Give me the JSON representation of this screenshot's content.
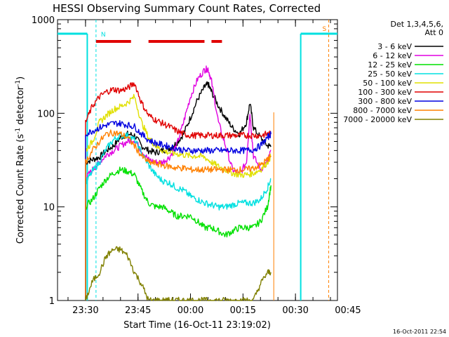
{
  "chart_data": {
    "type": "line",
    "title": "HESSI Observing Summary Count Rates, Corrected",
    "xlabel": "Start Time (16-Oct-11 23:19:02)",
    "ylabel": "Corrected Count Rate (s⁻¹ detector⁻¹)",
    "ylabel_main": "Corrected Count Rate (s",
    "ylabel_sup1": "-1",
    "ylabel_mid": " detector",
    "ylabel_sup2": "-1",
    "ylabel_end": ")",
    "y_scale": "log",
    "ylim": [
      1,
      1000
    ],
    "xlim_minutes": [
      -38,
      42
    ],
    "x_ticks": [
      {
        "m": -30,
        "label": "23:30"
      },
      {
        "m": -15,
        "label": "23:45"
      },
      {
        "m": 0,
        "label": "00:00"
      },
      {
        "m": 15,
        "label": "00:15"
      },
      {
        "m": 30,
        "label": "00:30"
      },
      {
        "m": 45,
        "label": "00:45"
      }
    ],
    "y_ticks": [
      {
        "v": 1,
        "label": "1"
      },
      {
        "v": 10,
        "label": "10"
      },
      {
        "v": 100,
        "label": "100"
      },
      {
        "v": 1000,
        "label": "1000"
      }
    ],
    "legend": {
      "placement": "right",
      "header_line1": "Det 1,3,4,5,6,",
      "header_line2": "Att 0",
      "entries": [
        {
          "label": "3 - 6 keV",
          "color": "#000000"
        },
        {
          "label": "6 - 12 keV",
          "color": "#e000e0"
        },
        {
          "label": "12 - 25 keV",
          "color": "#00e000"
        },
        {
          "label": "25 - 50 keV",
          "color": "#00e0e0"
        },
        {
          "label": "50 - 100 keV",
          "color": "#e0e000"
        },
        {
          "label": "100 - 300 keV",
          "color": "#e00000"
        },
        {
          "label": "300 - 800 keV",
          "color": "#0000e0"
        },
        {
          "label": "800 - 7000 keV",
          "color": "#ff8000"
        },
        {
          "label": "7000 - 20000 keV",
          "color": "#808000"
        }
      ]
    },
    "markers": {
      "night_label": "N",
      "saa_label": "S",
      "night_color": "#00e0e0",
      "saa_color": "#ff8000",
      "flare_color": "#e00000"
    },
    "flare_bars": [
      [
        -27,
        -17
      ],
      [
        -12,
        4
      ],
      [
        6,
        9
      ]
    ],
    "series": [
      {
        "name": "3 - 6 keV",
        "color": "#000000",
        "points": [
          [
            -30,
            30
          ],
          [
            -28,
            32
          ],
          [
            -26,
            34
          ],
          [
            -24,
            40
          ],
          [
            -22,
            45
          ],
          [
            -20,
            55
          ],
          [
            -18,
            60
          ],
          [
            -16,
            58
          ],
          [
            -14,
            45
          ],
          [
            -12,
            40
          ],
          [
            -10,
            38
          ],
          [
            -8,
            40
          ],
          [
            -6,
            42
          ],
          [
            -4,
            48
          ],
          [
            -2,
            60
          ],
          [
            0,
            90
          ],
          [
            2,
            140
          ],
          [
            4,
            190
          ],
          [
            5,
            205
          ],
          [
            6,
            170
          ],
          [
            8,
            120
          ],
          [
            10,
            90
          ],
          [
            12,
            70
          ],
          [
            14,
            60
          ],
          [
            16,
            80
          ],
          [
            17,
            130
          ],
          [
            18,
            70
          ],
          [
            20,
            55
          ],
          [
            22,
            45
          ],
          [
            23,
            45
          ]
        ]
      },
      {
        "name": "6 - 12 keV",
        "color": "#e000e0",
        "points": [
          [
            -30,
            20
          ],
          [
            -28,
            25
          ],
          [
            -26,
            30
          ],
          [
            -24,
            36
          ],
          [
            -22,
            40
          ],
          [
            -20,
            45
          ],
          [
            -18,
            50
          ],
          [
            -16,
            52
          ],
          [
            -14,
            40
          ],
          [
            -12,
            32
          ],
          [
            -10,
            30
          ],
          [
            -8,
            30
          ],
          [
            -6,
            34
          ],
          [
            -4,
            45
          ],
          [
            -2,
            80
          ],
          [
            0,
            150
          ],
          [
            2,
            230
          ],
          [
            4,
            290
          ],
          [
            5,
            300
          ],
          [
            6,
            220
          ],
          [
            8,
            80
          ],
          [
            10,
            45
          ],
          [
            12,
            25
          ],
          [
            14,
            22
          ],
          [
            16,
            30
          ],
          [
            17,
            100
          ],
          [
            18,
            35
          ],
          [
            20,
            25
          ],
          [
            22,
            30
          ],
          [
            23,
            40
          ]
        ]
      },
      {
        "name": "12 - 25 keV",
        "color": "#00e000",
        "points": [
          [
            -30,
            10
          ],
          [
            -28,
            12
          ],
          [
            -26,
            16
          ],
          [
            -24,
            20
          ],
          [
            -22,
            23
          ],
          [
            -20,
            25
          ],
          [
            -18,
            24
          ],
          [
            -16,
            22
          ],
          [
            -14,
            15
          ],
          [
            -12,
            11
          ],
          [
            -10,
            10
          ],
          [
            -8,
            10
          ],
          [
            -6,
            9
          ],
          [
            -4,
            8
          ],
          [
            -2,
            8
          ],
          [
            0,
            8
          ],
          [
            2,
            7
          ],
          [
            4,
            6
          ],
          [
            6,
            6
          ],
          [
            8,
            5.5
          ],
          [
            10,
            5
          ],
          [
            12,
            5.5
          ],
          [
            14,
            6
          ],
          [
            16,
            6
          ],
          [
            18,
            6
          ],
          [
            20,
            7
          ],
          [
            22,
            10
          ],
          [
            23,
            17
          ]
        ]
      },
      {
        "name": "25 - 50 keV",
        "color": "#00e0e0",
        "points": [
          [
            -30,
            18
          ],
          [
            -28,
            24
          ],
          [
            -26,
            30
          ],
          [
            -24,
            42
          ],
          [
            -22,
            52
          ],
          [
            -20,
            58
          ],
          [
            -18,
            58
          ],
          [
            -16,
            52
          ],
          [
            -14,
            38
          ],
          [
            -12,
            28
          ],
          [
            -10,
            22
          ],
          [
            -8,
            19
          ],
          [
            -6,
            18
          ],
          [
            -4,
            16
          ],
          [
            -2,
            15
          ],
          [
            0,
            13
          ],
          [
            2,
            12
          ],
          [
            4,
            11
          ],
          [
            6,
            10.5
          ],
          [
            8,
            10
          ],
          [
            10,
            10
          ],
          [
            12,
            10.5
          ],
          [
            14,
            11
          ],
          [
            16,
            11
          ],
          [
            18,
            11
          ],
          [
            20,
            12
          ],
          [
            22,
            16
          ],
          [
            23,
            20
          ]
        ]
      },
      {
        "name": "50 - 100 keV",
        "color": "#e0e000",
        "points": [
          [
            -30,
            40
          ],
          [
            -28,
            50
          ],
          [
            -26,
            80
          ],
          [
            -24,
            95
          ],
          [
            -22,
            110
          ],
          [
            -20,
            118
          ],
          [
            -18,
            130
          ],
          [
            -16,
            150
          ],
          [
            -14,
            80
          ],
          [
            -12,
            55
          ],
          [
            -10,
            45
          ],
          [
            -8,
            40
          ],
          [
            -6,
            38
          ],
          [
            -4,
            37
          ],
          [
            -2,
            36
          ],
          [
            0,
            35
          ],
          [
            2,
            35
          ],
          [
            4,
            34
          ],
          [
            6,
            30
          ],
          [
            8,
            27
          ],
          [
            10,
            25
          ],
          [
            12,
            23
          ],
          [
            14,
            22
          ],
          [
            16,
            22
          ],
          [
            18,
            23
          ],
          [
            20,
            25
          ],
          [
            22,
            30
          ],
          [
            23,
            35
          ]
        ]
      },
      {
        "name": "100 - 300 keV",
        "color": "#e00000",
        "points": [
          [
            -30,
            80
          ],
          [
            -28,
            120
          ],
          [
            -26,
            150
          ],
          [
            -24,
            170
          ],
          [
            -22,
            180
          ],
          [
            -20,
            175
          ],
          [
            -18,
            185
          ],
          [
            -16,
            210
          ],
          [
            -14,
            130
          ],
          [
            -12,
            95
          ],
          [
            -10,
            85
          ],
          [
            -8,
            78
          ],
          [
            -6,
            72
          ],
          [
            -4,
            65
          ],
          [
            -2,
            60
          ],
          [
            0,
            58
          ],
          [
            2,
            58
          ],
          [
            4,
            58
          ],
          [
            6,
            58
          ],
          [
            8,
            58
          ],
          [
            10,
            58
          ],
          [
            12,
            58
          ],
          [
            14,
            58
          ],
          [
            16,
            58
          ],
          [
            18,
            58
          ],
          [
            20,
            58
          ],
          [
            22,
            60
          ],
          [
            23,
            60
          ]
        ]
      },
      {
        "name": "300 - 800 keV",
        "color": "#0000e0",
        "points": [
          [
            -30,
            60
          ],
          [
            -28,
            65
          ],
          [
            -26,
            70
          ],
          [
            -24,
            75
          ],
          [
            -22,
            78
          ],
          [
            -20,
            78
          ],
          [
            -18,
            75
          ],
          [
            -16,
            72
          ],
          [
            -14,
            60
          ],
          [
            -12,
            52
          ],
          [
            -10,
            48
          ],
          [
            -8,
            46
          ],
          [
            -6,
            44
          ],
          [
            -4,
            42
          ],
          [
            -2,
            40
          ],
          [
            0,
            40
          ],
          [
            2,
            40
          ],
          [
            4,
            40
          ],
          [
            6,
            40
          ],
          [
            8,
            40
          ],
          [
            10,
            40
          ],
          [
            12,
            40
          ],
          [
            14,
            40
          ],
          [
            16,
            40
          ],
          [
            18,
            41
          ],
          [
            20,
            45
          ],
          [
            22,
            55
          ],
          [
            23,
            60
          ]
        ]
      },
      {
        "name": "800 - 7000 keV",
        "color": "#ff8000",
        "points": [
          [
            -30,
            30
          ],
          [
            -28,
            40
          ],
          [
            -26,
            50
          ],
          [
            -24,
            60
          ],
          [
            -22,
            62
          ],
          [
            -20,
            60
          ],
          [
            -18,
            55
          ],
          [
            -16,
            45
          ],
          [
            -14,
            35
          ],
          [
            -12,
            30
          ],
          [
            -10,
            29
          ],
          [
            -8,
            28
          ],
          [
            -6,
            27
          ],
          [
            -4,
            26
          ],
          [
            -2,
            26
          ],
          [
            0,
            25
          ],
          [
            2,
            25
          ],
          [
            4,
            25
          ],
          [
            6,
            25
          ],
          [
            8,
            25
          ],
          [
            10,
            25
          ],
          [
            12,
            25
          ],
          [
            14,
            25
          ],
          [
            16,
            25
          ],
          [
            18,
            26
          ],
          [
            20,
            28
          ],
          [
            22,
            32
          ],
          [
            23,
            35
          ]
        ]
      },
      {
        "name": "7000 - 20000 keV",
        "color": "#808000",
        "points": [
          [
            -30,
            1
          ],
          [
            -28,
            1.6
          ],
          [
            -26,
            2
          ],
          [
            -24,
            3
          ],
          [
            -22,
            3.5
          ],
          [
            -20,
            3.5
          ],
          [
            -18,
            3
          ],
          [
            -16,
            2
          ],
          [
            -14,
            1.5
          ],
          [
            -12,
            1
          ],
          [
            -10,
            1
          ],
          [
            -8,
            1
          ],
          [
            -6,
            1
          ],
          [
            -4,
            1
          ],
          [
            -2,
            1
          ],
          [
            0,
            1
          ],
          [
            2,
            1
          ],
          [
            4,
            1
          ],
          [
            6,
            1
          ],
          [
            8,
            1
          ],
          [
            10,
            1
          ],
          [
            12,
            1
          ],
          [
            14,
            1
          ],
          [
            16,
            1
          ],
          [
            18,
            1
          ],
          [
            20,
            1.5
          ],
          [
            22,
            2
          ],
          [
            23,
            2
          ]
        ]
      }
    ]
  },
  "footer": {
    "timestamp": "16-Oct-2011 22:54"
  }
}
